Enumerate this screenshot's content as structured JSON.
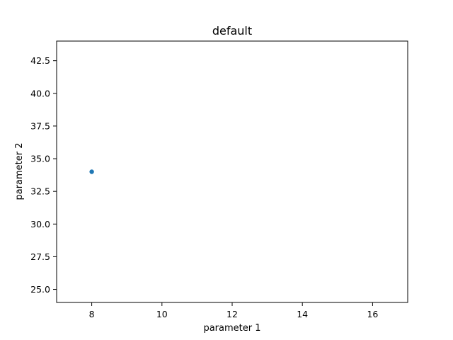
{
  "chart_data": {
    "type": "scatter",
    "title": "default",
    "xlabel": "parameter 1",
    "ylabel": "parameter 2",
    "xlim": [
      7,
      17
    ],
    "ylim": [
      24,
      44
    ],
    "xticks": [
      8,
      10,
      12,
      14,
      16
    ],
    "yticks": [
      25.0,
      27.5,
      30.0,
      32.5,
      35.0,
      37.5,
      40.0,
      42.5
    ],
    "xtick_labels": [
      "8",
      "10",
      "12",
      "14",
      "16"
    ],
    "ytick_labels": [
      "25.0",
      "27.5",
      "30.0",
      "32.5",
      "35.0",
      "37.5",
      "40.0",
      "42.5"
    ],
    "grid": false,
    "series": [
      {
        "color": "#1f77b4",
        "points": [
          {
            "x": 8,
            "y": 34
          }
        ]
      }
    ]
  }
}
